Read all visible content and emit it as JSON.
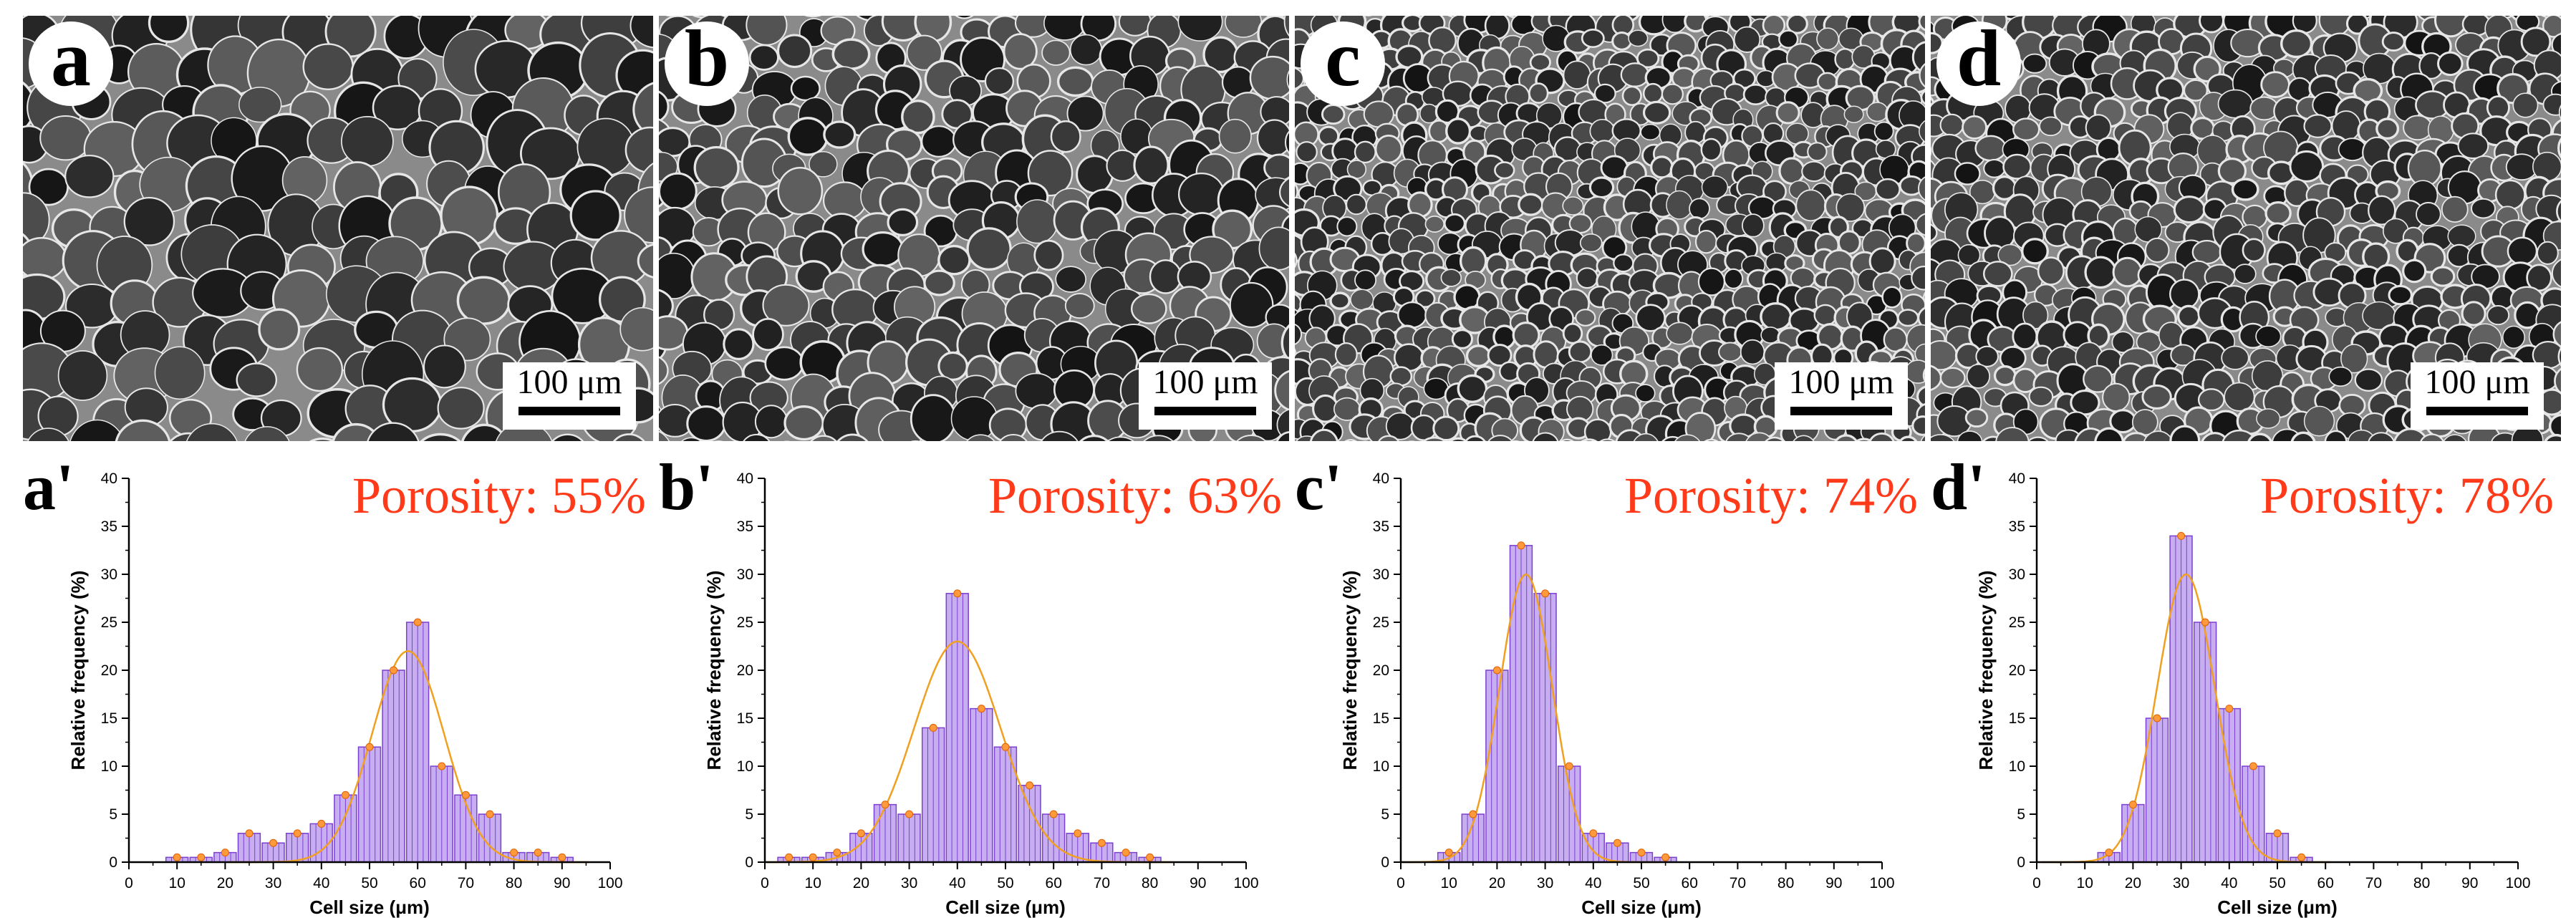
{
  "colors": {
    "bar_fill": "#c7aef0",
    "bar_edge": "#7b3fd1",
    "fit_line": "#f0a020",
    "marker": "#ff9a3c",
    "porosity_text": "#ff3a1a"
  },
  "sem_images": [
    {
      "label": "a",
      "scale_text": "100 μm"
    },
    {
      "label": "b",
      "scale_text": "100 μm"
    },
    {
      "label": "c",
      "scale_text": "100 μm"
    },
    {
      "label": "d",
      "scale_text": "100 μm"
    }
  ],
  "chart_data": [
    {
      "type": "bar",
      "panel_label": "a'",
      "annotation": "Porosity: 55%",
      "xlabel": "Cell size (μm)",
      "ylabel": "Relative frequency (%)",
      "xlim": [
        0,
        100
      ],
      "ylim": [
        0,
        40
      ],
      "xticks": [
        0,
        10,
        20,
        30,
        40,
        50,
        60,
        70,
        80,
        90,
        100
      ],
      "yticks": [
        0,
        5,
        10,
        15,
        20,
        25,
        30,
        35,
        40
      ],
      "x": [
        10,
        15,
        20,
        25,
        30,
        35,
        40,
        45,
        50,
        55,
        60,
        65,
        70,
        75,
        80,
        85,
        90
      ],
      "values": [
        0.5,
        0.5,
        1,
        3,
        2,
        3,
        4,
        7,
        12,
        20,
        25,
        10,
        7,
        5,
        1,
        1,
        0.5
      ],
      "fit": {
        "center": 58,
        "amplitude": 22,
        "width": 7.5
      }
    },
    {
      "type": "bar",
      "panel_label": "b'",
      "annotation": "Porosity: 63%",
      "xlabel": "Cell size (μm)",
      "ylabel": "Relative frequency (%)",
      "xlim": [
        0,
        100
      ],
      "ylim": [
        0,
        40
      ],
      "xticks": [
        0,
        10,
        20,
        30,
        40,
        50,
        60,
        70,
        80,
        90,
        100
      ],
      "yticks": [
        0,
        5,
        10,
        15,
        20,
        25,
        30,
        35,
        40
      ],
      "x": [
        5,
        10,
        15,
        20,
        25,
        30,
        35,
        40,
        45,
        50,
        55,
        60,
        65,
        70,
        75,
        80
      ],
      "values": [
        0.5,
        0.5,
        1,
        3,
        6,
        5,
        14,
        28,
        16,
        12,
        8,
        5,
        3,
        2,
        1,
        0.5
      ],
      "fit": {
        "center": 40,
        "amplitude": 23,
        "width": 9
      }
    },
    {
      "type": "bar",
      "panel_label": "c'",
      "annotation": "Porosity: 74%",
      "xlabel": "Cell size (μm)",
      "ylabel": "Relative frequency (%)",
      "xlim": [
        0,
        100
      ],
      "ylim": [
        0,
        40
      ],
      "xticks": [
        0,
        10,
        20,
        30,
        40,
        50,
        60,
        70,
        80,
        90,
        100
      ],
      "yticks": [
        0,
        5,
        10,
        15,
        20,
        25,
        30,
        35,
        40
      ],
      "x": [
        10,
        15,
        20,
        25,
        30,
        35,
        40,
        45,
        50,
        55
      ],
      "values": [
        1,
        5,
        20,
        33,
        28,
        10,
        3,
        2,
        1,
        0.5
      ],
      "fit": {
        "center": 26,
        "amplitude": 30,
        "width": 5.5
      }
    },
    {
      "type": "bar",
      "panel_label": "d'",
      "annotation": "Porosity: 78%",
      "xlabel": "Cell size (μm)",
      "ylabel": "Relative frequency (%)",
      "xlim": [
        0,
        100
      ],
      "ylim": [
        0,
        40
      ],
      "xticks": [
        0,
        10,
        20,
        30,
        40,
        50,
        60,
        70,
        80,
        90,
        100
      ],
      "yticks": [
        0,
        5,
        10,
        15,
        20,
        25,
        30,
        35,
        40
      ],
      "x": [
        15,
        20,
        25,
        30,
        35,
        40,
        45,
        50,
        55
      ],
      "values": [
        1,
        6,
        15,
        34,
        25,
        16,
        10,
        3,
        0.5
      ],
      "fit": {
        "center": 31,
        "amplitude": 30,
        "width": 6
      }
    }
  ]
}
